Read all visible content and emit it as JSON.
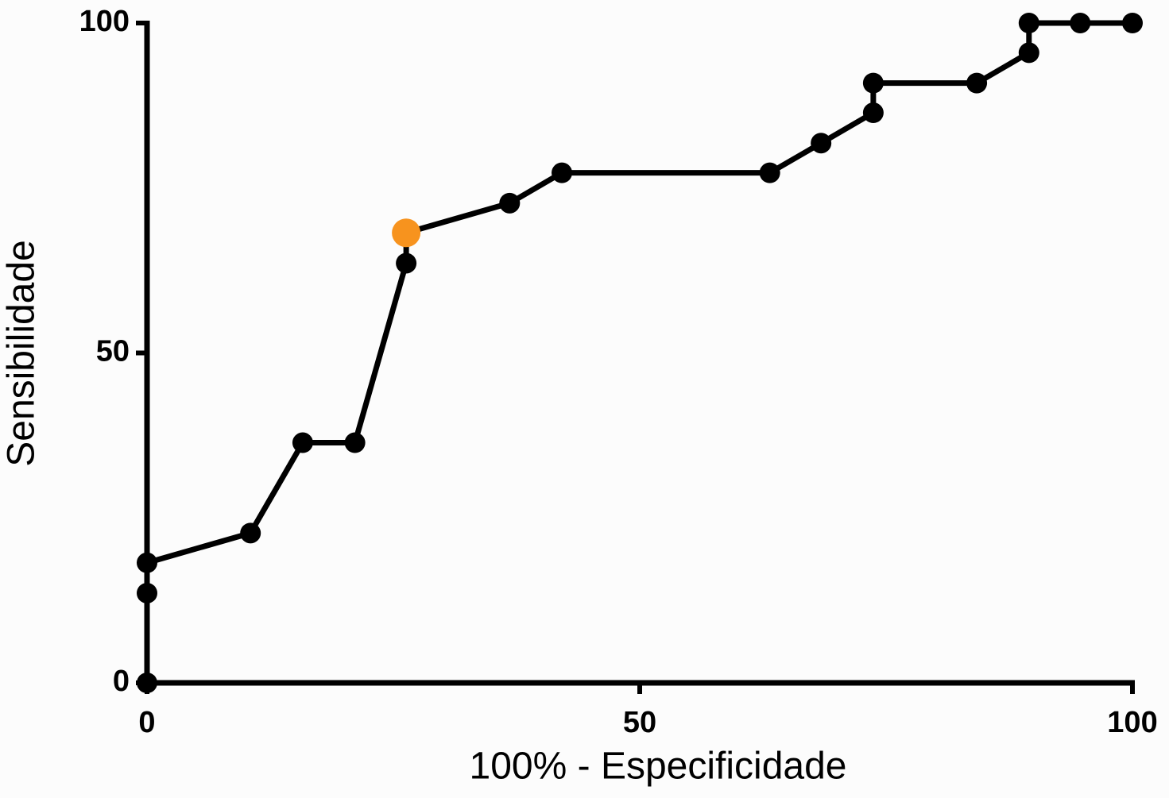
{
  "chart_data": {
    "type": "line",
    "x_label": "100% - Especificidade",
    "y_label": "Sensibilidade",
    "x": [
      0,
      0,
      0,
      10.5,
      15.8,
      21.1,
      26.3,
      26.3,
      36.8,
      42.1,
      63.2,
      68.4,
      73.7,
      73.7,
      84.2,
      89.5,
      89.5,
      94.7,
      100
    ],
    "values": [
      0,
      13.6,
      18.2,
      22.7,
      36.4,
      36.4,
      63.6,
      68.2,
      72.7,
      77.3,
      77.3,
      81.8,
      86.4,
      90.9,
      90.9,
      95.5,
      100,
      100,
      100
    ],
    "color": "#000000",
    "point_colors": [
      "#000000",
      "#000000",
      "#000000",
      "#000000",
      "#000000",
      "#000000",
      "#000000",
      "#f7931e",
      "#000000",
      "#000000",
      "#000000",
      "#000000",
      "#000000",
      "#000000",
      "#000000",
      "#000000",
      "#000000",
      "#000000",
      "#000000"
    ],
    "xlim": [
      0,
      100
    ],
    "xticks": [
      0,
      50,
      100
    ],
    "ylim": [
      0,
      100
    ],
    "yticks": [
      0,
      50,
      100
    ]
  }
}
